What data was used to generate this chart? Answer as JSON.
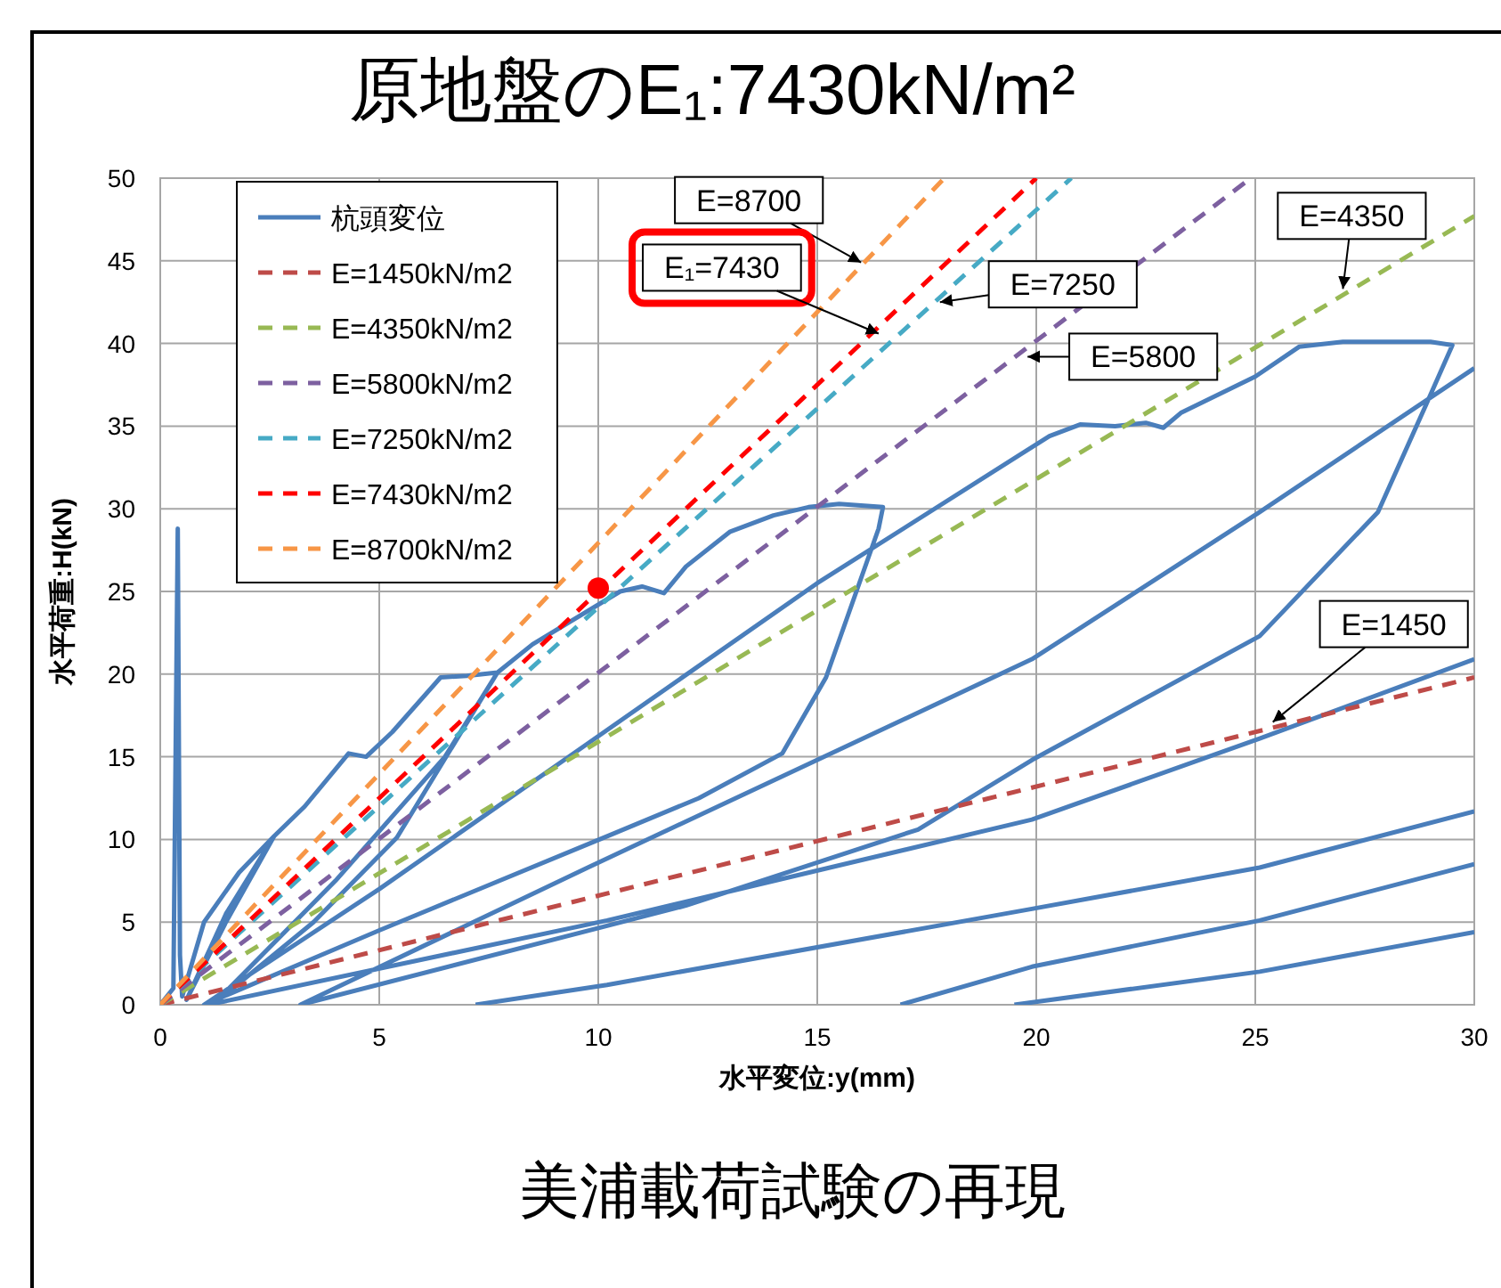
{
  "chart_data": {
    "type": "line",
    "title": "原地盤のE₁:7430kN/m²",
    "xlabel": "水平変位:y(mm)",
    "ylabel": "水平荷重:H(kN)",
    "xlim": [
      0,
      30
    ],
    "ylim": [
      0,
      50
    ],
    "xticks": [
      0,
      5,
      10,
      15,
      20,
      25,
      30
    ],
    "yticks": [
      0,
      5,
      10,
      15,
      20,
      25,
      30,
      35,
      40,
      45,
      50
    ],
    "grid": true,
    "legend": "top left",
    "series": [
      {
        "name": "杭頭変位",
        "color": "#4a7ebb",
        "line_style": "solid",
        "x": [
          0,
          0.3,
          0.4,
          0.45,
          0.5,
          1,
          1.8,
          2.6,
          1.5,
          0.6,
          1.5,
          2.6,
          3.3,
          4.3,
          4.7,
          5.3,
          6.4,
          7,
          7.7,
          5.4,
          3.5,
          1.2,
          4,
          6.5,
          7.7,
          8.5,
          10.5,
          11,
          11.5,
          12,
          13,
          14,
          14.8,
          15.5,
          16.5,
          16.4,
          15.2,
          14.2,
          12.3,
          10.3,
          5,
          1,
          5,
          9.76,
          15,
          20.3,
          21,
          21.8,
          22.5,
          22.9,
          23.3,
          25,
          26,
          27,
          29,
          29.5,
          28.9,
          27.8,
          25.1,
          19.9,
          17.3,
          12,
          3.2,
          9.76,
          19.9,
          25.1,
          30,
          null,
          1.1,
          10.2,
          19.9,
          25.1,
          30,
          null,
          7.2,
          10.2,
          19.9,
          25.1,
          30,
          null,
          16.9,
          19.9,
          25.1,
          30,
          null,
          19.5,
          25.1,
          30
        ],
        "values": [
          0,
          1,
          28.8,
          3,
          0.5,
          5,
          8,
          10.2,
          5,
          0.3,
          5.5,
          10.2,
          12,
          15.2,
          15,
          16.5,
          19.8,
          19.9,
          20.1,
          10.1,
          5,
          0,
          7.5,
          15,
          20.1,
          21.8,
          25,
          25.3,
          24.9,
          26.5,
          28.6,
          29.6,
          30.1,
          30.3,
          30.1,
          28.8,
          19.8,
          15.2,
          12.5,
          10.3,
          4.5,
          0,
          7,
          15.8,
          25.5,
          34.4,
          35.1,
          35,
          35.2,
          34.9,
          35.8,
          38,
          39.8,
          40.1,
          40.1,
          39.9,
          36.3,
          29.8,
          22.3,
          14.8,
          10.6,
          6,
          0,
          8.3,
          20.9,
          29.8,
          38.5,
          null,
          0,
          5.1,
          11.2,
          16.1,
          20.9,
          null,
          0,
          1.2,
          5.8,
          8.3,
          11.7,
          null,
          0,
          2.3,
          5.1,
          8.5,
          null,
          0,
          2,
          4.4
        ]
      },
      {
        "name": "E=1450kN/m2",
        "color": "#be4b48",
        "line_style": "dashed",
        "x": [
          0,
          30
        ],
        "values": [
          0,
          19.8
        ]
      },
      {
        "name": "E=4350kN/m2",
        "color": "#98b954",
        "line_style": "dashed",
        "x": [
          0,
          30
        ],
        "values": [
          0,
          47.7
        ]
      },
      {
        "name": "E=5800kN/m2",
        "color": "#7d60a0",
        "line_style": "dashed",
        "x": [
          0,
          24.9
        ],
        "values": [
          0,
          50
        ]
      },
      {
        "name": "E=7250kN/m2",
        "color": "#46aac5",
        "line_style": "dashed",
        "x": [
          0,
          20.8
        ],
        "values": [
          0,
          50
        ]
      },
      {
        "name": "E=7430kN/m2",
        "color": "#ff0000",
        "line_style": "dashed",
        "x": [
          0,
          20
        ],
        "values": [
          0,
          50
        ]
      },
      {
        "name": "E=8700kN/m2",
        "color": "#f79646",
        "line_style": "dashed",
        "x": [
          0,
          17.9
        ],
        "values": [
          0,
          50
        ]
      },
      {
        "type": "scatter",
        "color": "#ff0000",
        "x": [
          10
        ],
        "values": [
          25.2
        ]
      }
    ],
    "annotations": [
      {
        "text": "E=8700",
        "x": 16.0,
        "y": 44.9
      },
      {
        "text": "E₁=7430",
        "x": 16.4,
        "y": 40.6
      },
      {
        "text": "E=7250",
        "x": 17.8,
        "y": 42.5
      },
      {
        "text": "E=5800",
        "x": 19.8,
        "y": 39.2
      },
      {
        "text": "E=4350",
        "x": 27.0,
        "y": 43.3
      },
      {
        "text": "E=1450",
        "x": 25.4,
        "y": 17.1
      },
      "美浦載荷試験の再現"
    ]
  }
}
